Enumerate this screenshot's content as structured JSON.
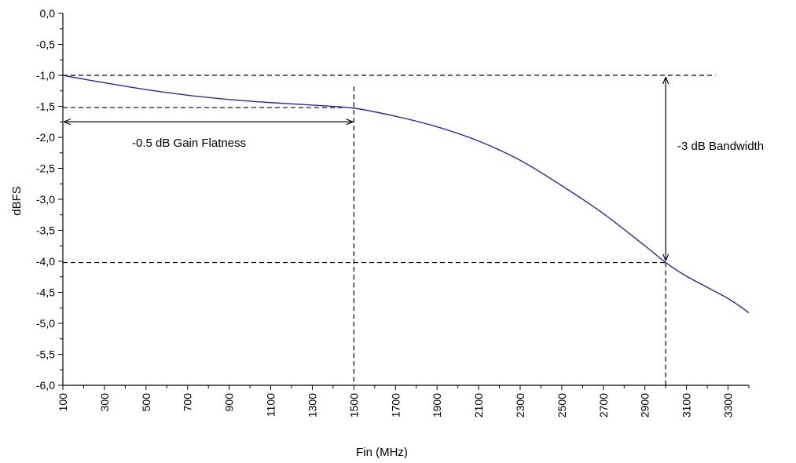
{
  "chart_data": {
    "type": "line",
    "xlabel": "Fin (MHz)",
    "ylabel": "dBFS",
    "xlim": [
      100,
      3400
    ],
    "ylim": [
      -6.0,
      0.0
    ],
    "x_ticks": [
      "100",
      "300",
      "500",
      "700",
      "900",
      "1100",
      "1300",
      "1500",
      "1700",
      "1900",
      "2100",
      "2300",
      "2500",
      "2700",
      "2900",
      "3100",
      "3300"
    ],
    "y_ticks": [
      "0,0",
      "-0,5",
      "-1,0",
      "-1,5",
      "-2,0",
      "-2,5",
      "-3,0",
      "-3,5",
      "-4,0",
      "-4,5",
      "-5,0",
      "-5,5",
      "-6,0"
    ],
    "line_color": "#2b2b8c",
    "series": [
      {
        "x": [
          100,
          300,
          500,
          700,
          900,
          1100,
          1300,
          1500,
          1700,
          1900,
          2100,
          2300,
          2500,
          2700,
          2900,
          3000,
          3100,
          3300,
          3400
        ],
        "y": [
          -1.0,
          -1.12,
          -1.23,
          -1.32,
          -1.39,
          -1.44,
          -1.48,
          -1.53,
          -1.66,
          -1.83,
          -2.06,
          -2.37,
          -2.78,
          -3.23,
          -3.75,
          -4.02,
          -4.24,
          -4.6,
          -4.83
        ]
      }
    ],
    "reference_lines": {
      "h": [
        -1.0,
        -1.52,
        -4.02
      ],
      "v": [
        1500,
        3000
      ]
    },
    "annotations": [
      {
        "text": "-0.5 dB Gain Flatness",
        "x_from": 100,
        "x_to": 1500,
        "y": -1.75
      },
      {
        "text": "-3 dB Bandwidth",
        "x": 3000,
        "y_from": -1.0,
        "y_to": -4.02
      }
    ]
  }
}
